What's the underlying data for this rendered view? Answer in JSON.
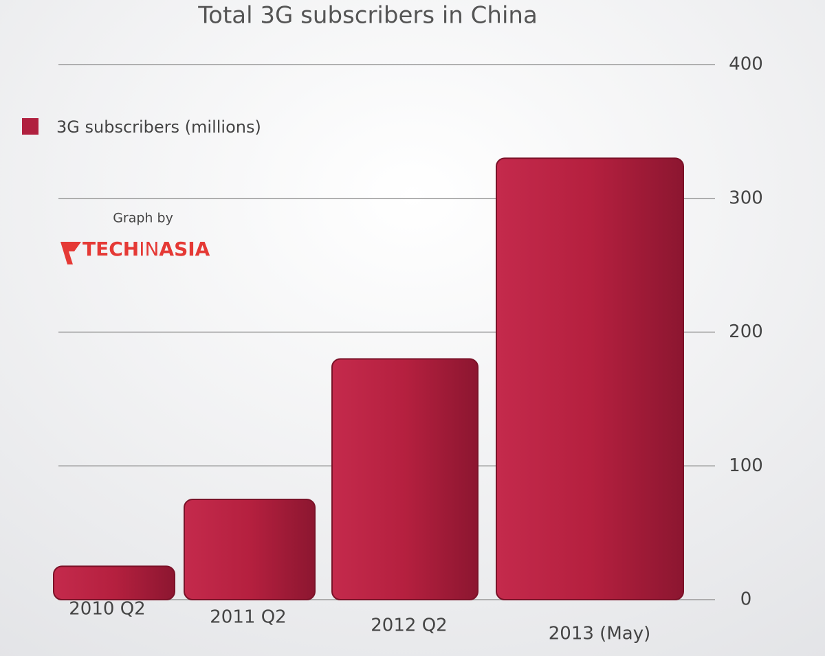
{
  "chart_data": {
    "type": "bar",
    "title": "Total 3G subscribers in China",
    "categories": [
      "2010 Q2",
      "2011 Q2",
      "2012 Q2",
      "2013 (May)"
    ],
    "series": [
      {
        "name": "3G subscribers (millions)",
        "color": "#b0203f",
        "values": [
          25,
          75,
          180,
          330
        ]
      }
    ],
    "ylim": [
      0,
      400
    ],
    "yticks": [
      0,
      100,
      200,
      300,
      400
    ],
    "grid": true,
    "legend": "top-left",
    "annotations": {
      "credit": "Graph by",
      "brand_red": "TECH",
      "brand_mid": "IN",
      "brand_end": "ASIA"
    }
  }
}
